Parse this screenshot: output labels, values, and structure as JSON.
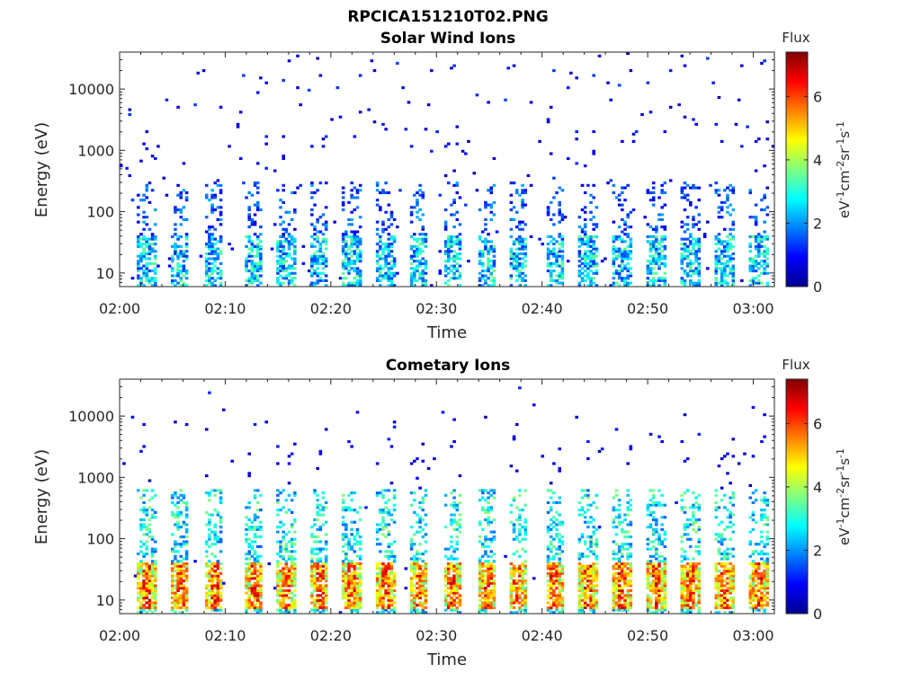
{
  "figure_title": "RPCICA151210T02.PNG",
  "colormap": [
    "#00008f",
    "#0000ff",
    "#0080ff",
    "#00ffff",
    "#80ff80",
    "#ffff00",
    "#ff8000",
    "#ff0000",
    "#800000"
  ],
  "chart_data": [
    {
      "type": "heatmap",
      "title": "Solar Wind Ions",
      "xlabel": "Time",
      "ylabel": "Energy (eV)",
      "x_range": [
        "02:00",
        "03:02"
      ],
      "x_ticks": [
        "02:00",
        "02:10",
        "02:20",
        "02:30",
        "02:40",
        "02:50",
        "03:00"
      ],
      "y_scale": "log",
      "y_range": [
        6,
        40000
      ],
      "y_ticks": [
        "10",
        "100",
        "1000",
        "10000"
      ],
      "colorbar": {
        "title": "Flux",
        "label": "eV-1cm-2sr-1s-1",
        "range": [
          0,
          7.4
        ],
        "ticks": [
          "0",
          "2",
          "4",
          "6"
        ]
      },
      "burst_minutes": [
        2.5,
        5.7,
        8.9,
        12.7,
        15.7,
        18.9,
        22.0,
        25.2,
        28.3,
        31.5,
        34.8,
        37.7,
        41.2,
        44.4,
        47.5,
        50.8,
        54.0,
        57.2,
        60.5
      ],
      "description": "Sparse low-flux (0-3) counts scattered from 10 eV to 30 keV; periodic vertical bursts every ~3.2 min concentrated below 300 eV"
    },
    {
      "type": "heatmap",
      "title": "Cometary Ions",
      "xlabel": "Time",
      "ylabel": "Energy (eV)",
      "x_range": [
        "02:00",
        "03:02"
      ],
      "x_ticks": [
        "02:00",
        "02:10",
        "02:20",
        "02:30",
        "02:40",
        "02:50",
        "03:00"
      ],
      "y_scale": "log",
      "y_range": [
        6,
        40000
      ],
      "y_ticks": [
        "10",
        "100",
        "1000",
        "10000"
      ],
      "colorbar": {
        "title": "Flux",
        "label": "eV-1cm-2sr-1s-1",
        "range": [
          0,
          7.4
        ],
        "ticks": [
          "0",
          "2",
          "4",
          "6"
        ]
      },
      "burst_minutes": [
        2.5,
        5.7,
        8.9,
        12.7,
        15.7,
        18.9,
        22.0,
        25.2,
        28.3,
        31.5,
        34.8,
        37.7,
        41.2,
        44.4,
        47.5,
        50.8,
        54.0,
        57.2,
        60.5
      ],
      "description": "Periodic bursts every ~3.2 min: peak flux (5-7) at 8-40 eV, moderate flux (2-4) from 40 to 600 eV, sparse counts above 1 keV"
    }
  ]
}
